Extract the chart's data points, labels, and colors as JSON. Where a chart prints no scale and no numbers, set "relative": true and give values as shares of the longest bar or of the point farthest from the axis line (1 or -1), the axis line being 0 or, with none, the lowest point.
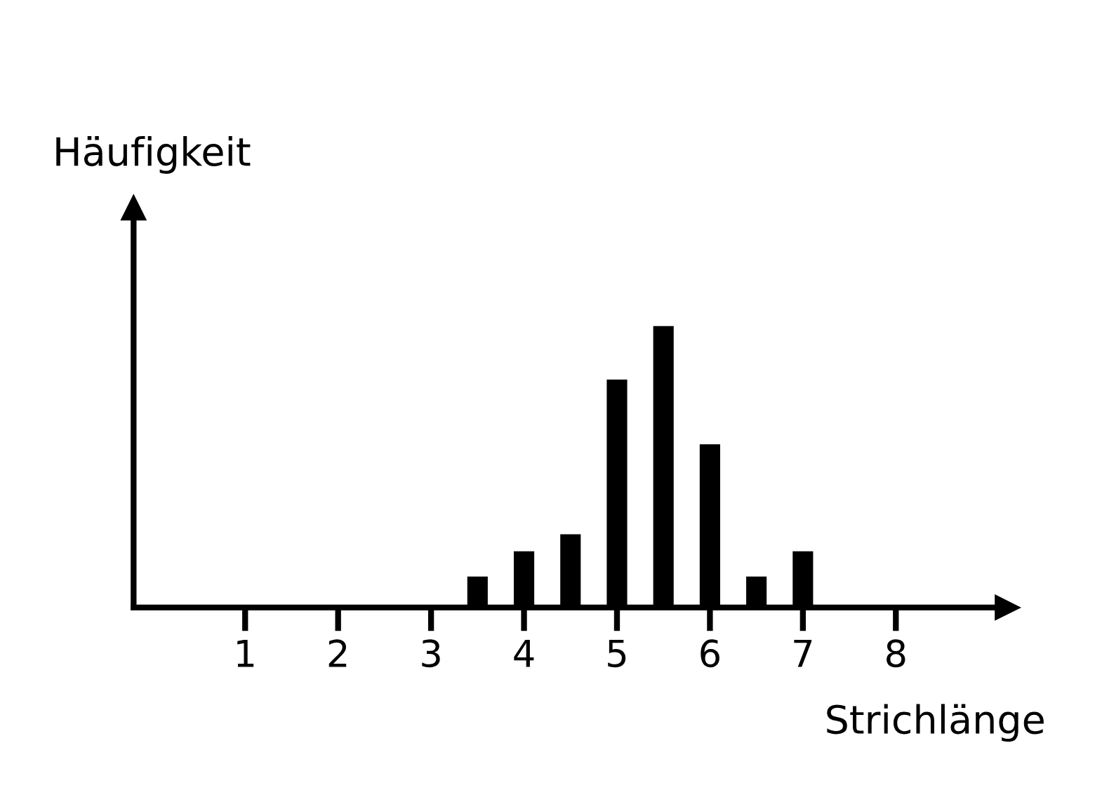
{
  "chart_data": {
    "type": "bar",
    "xlabel": "Strichlänge",
    "ylabel": "Häufigkeit",
    "x": [
      3.5,
      4,
      4.5,
      5,
      5.5,
      6,
      6.5,
      7
    ],
    "values": [
      0.11,
      0.2,
      0.26,
      0.81,
      1,
      0.58,
      0.11,
      0.2
    ],
    "color": "#000000",
    "relative": true,
    "xlim": [
      -0.2,
      9.2
    ],
    "xticks": [
      1,
      2,
      3,
      4,
      5,
      6,
      7,
      8
    ],
    "grid": false,
    "legend": false
  }
}
